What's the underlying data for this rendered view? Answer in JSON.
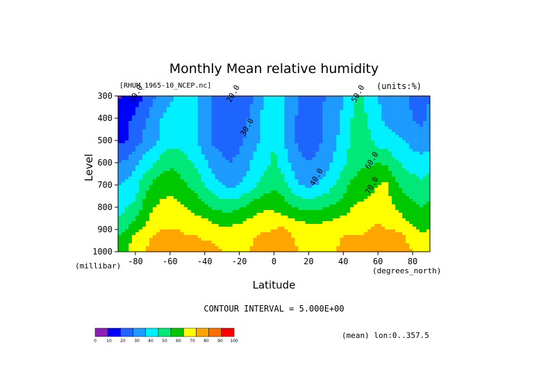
{
  "chart_data": {
    "type": "heatmap",
    "title": "Monthly Mean relative humidity",
    "source_label": "[RHUM_1965-10_NCEP.nc]",
    "units_label": "(units:%)",
    "xlabel": "Latitude",
    "x_units": "(degrees_north)",
    "ylabel": "Level",
    "y_units": "(millibar)",
    "x_range": [
      -90,
      90
    ],
    "y_range": [
      1000,
      300
    ],
    "x_ticks": [
      -80,
      -60,
      -40,
      -20,
      0,
      20,
      40,
      60,
      80
    ],
    "y_ticks": [
      300,
      400,
      500,
      600,
      700,
      800,
      900,
      1000
    ],
    "x_points": [
      -90,
      -85,
      -80,
      -75,
      -70,
      -65,
      -60,
      -55,
      -50,
      -45,
      -40,
      -35,
      -30,
      -25,
      -20,
      -15,
      -10,
      -5,
      0,
      5,
      10,
      15,
      20,
      25,
      30,
      35,
      40,
      45,
      50,
      55,
      60,
      65,
      70,
      75,
      80,
      85,
      90
    ],
    "levels": [
      300,
      400,
      500,
      600,
      700,
      800,
      850,
      900,
      925,
      1000
    ],
    "values": [
      [
        8,
        12,
        15,
        20,
        28,
        32,
        38,
        42,
        45,
        42,
        36,
        30,
        24,
        20,
        22,
        26,
        32,
        40,
        46,
        42,
        36,
        30,
        26,
        28,
        30,
        34,
        40,
        48,
        52,
        46,
        40,
        36,
        34,
        32,
        28,
        26,
        30
      ],
      [
        15,
        18,
        22,
        28,
        34,
        40,
        44,
        46,
        45,
        40,
        34,
        28,
        24,
        22,
        24,
        30,
        38,
        44,
        46,
        40,
        32,
        28,
        26,
        28,
        32,
        36,
        42,
        50,
        54,
        48,
        42,
        38,
        36,
        34,
        30,
        28,
        32
      ],
      [
        18,
        20,
        25,
        32,
        36,
        42,
        46,
        46,
        44,
        40,
        34,
        28,
        26,
        26,
        28,
        32,
        38,
        44,
        50,
        42,
        32,
        28,
        25,
        28,
        32,
        38,
        44,
        52,
        56,
        52,
        46,
        44,
        42,
        40,
        36,
        34,
        36
      ],
      [
        30,
        32,
        38,
        44,
        48,
        54,
        58,
        56,
        52,
        48,
        42,
        36,
        32,
        30,
        32,
        38,
        44,
        48,
        52,
        46,
        38,
        32,
        30,
        32,
        36,
        42,
        48,
        54,
        58,
        58,
        60,
        58,
        52,
        48,
        46,
        44,
        46
      ],
      [
        40,
        42,
        46,
        56,
        62,
        66,
        66,
        64,
        60,
        56,
        50,
        44,
        40,
        38,
        40,
        44,
        50,
        54,
        58,
        54,
        46,
        40,
        38,
        40,
        44,
        50,
        56,
        62,
        64,
        66,
        70,
        72,
        62,
        56,
        54,
        52,
        54
      ],
      [
        45,
        50,
        52,
        62,
        70,
        72,
        74,
        72,
        70,
        66,
        62,
        58,
        56,
        56,
        58,
        62,
        66,
        68,
        68,
        66,
        60,
        58,
        56,
        58,
        60,
        62,
        64,
        70,
        72,
        74,
        76,
        74,
        70,
        66,
        62,
        60,
        62
      ],
      [
        50,
        55,
        60,
        66,
        74,
        76,
        78,
        76,
        74,
        72,
        70,
        68,
        66,
        66,
        68,
        70,
        72,
        74,
        74,
        72,
        70,
        68,
        66,
        66,
        68,
        70,
        72,
        74,
        76,
        78,
        78,
        76,
        74,
        70,
        66,
        64,
        66
      ],
      [
        55,
        60,
        68,
        72,
        78,
        80,
        80,
        80,
        78,
        76,
        74,
        72,
        72,
        72,
        72,
        74,
        76,
        78,
        80,
        82,
        78,
        76,
        74,
        74,
        74,
        76,
        76,
        78,
        78,
        80,
        82,
        80,
        80,
        76,
        72,
        68,
        70
      ],
      [
        60,
        65,
        72,
        76,
        80,
        82,
        82,
        82,
        80,
        80,
        78,
        78,
        76,
        76,
        78,
        78,
        80,
        82,
        84,
        82,
        80,
        78,
        78,
        78,
        78,
        78,
        80,
        80,
        80,
        82,
        84,
        82,
        82,
        80,
        76,
        72,
        74
      ],
      [
        68,
        70,
        76,
        80,
        84,
        86,
        86,
        84,
        84,
        84,
        84,
        82,
        80,
        80,
        80,
        80,
        82,
        84,
        84,
        84,
        82,
        80,
        80,
        80,
        80,
        80,
        82,
        82,
        84,
        86,
        88,
        88,
        84,
        82,
        80,
        78,
        80
      ]
    ],
    "contour_labels": [
      "10.0",
      "20.0",
      "30.0",
      "40.0",
      "50.0",
      "60.0",
      "70.0"
    ],
    "contour_interval_text": "CONTOUR INTERVAL = 5.000E+00",
    "colorbar": {
      "ticks": [
        "0",
        "10",
        "20",
        "30",
        "40",
        "50",
        "60",
        "70",
        "80",
        "90",
        "100"
      ],
      "colors": [
        "#8c1fb4",
        "#0000ff",
        "#1e64ff",
        "#1e9bff",
        "#00f0ff",
        "#00e878",
        "#00c800",
        "#ffff00",
        "#ffa500",
        "#ff6e00",
        "#ff0000"
      ]
    },
    "footer_text": "(mean) lon:0..357.5"
  }
}
